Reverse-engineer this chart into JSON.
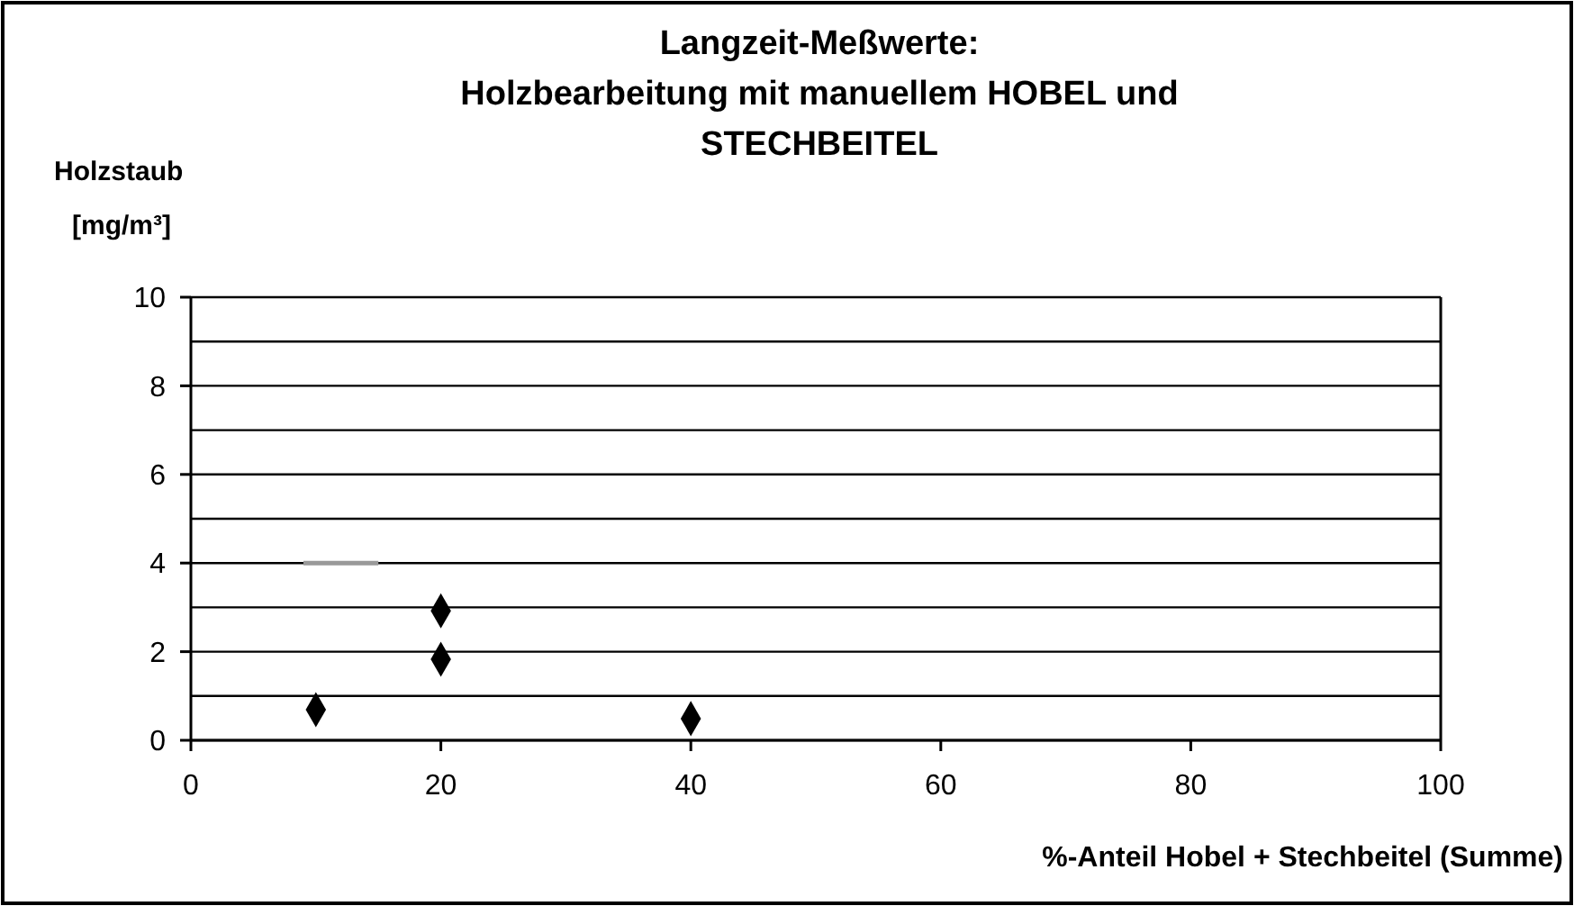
{
  "chart_data": {
    "type": "scatter",
    "title": "Langzeit-Meßwerte:\nHolzbearbeitung mit manuellem HOBEL und\nSTECHBEITEL",
    "xlabel": "%-Anteil Hobel + Stechbeitel (Summe)",
    "ylabel": "Holzstaub\n[mg/m³]",
    "marker": "diamond",
    "grid": "y",
    "xlim": [
      0,
      100
    ],
    "xticks": [
      0,
      20,
      40,
      60,
      80,
      100
    ],
    "ylim": [
      0,
      10
    ],
    "yticks": [
      0,
      {
        "value": 1,
        "label": null
      },
      2,
      {
        "value": 3,
        "label": null
      },
      4,
      {
        "value": 5,
        "label": null
      },
      6,
      {
        "value": 7,
        "label": null
      },
      8,
      {
        "value": 9,
        "label": null
      },
      10
    ],
    "series": [
      {
        "color": "#000000",
        "x": [
          10,
          20,
          20,
          40
        ],
        "values": [
          0.69,
          2.92,
          1.83,
          0.49
        ]
      },
      {
        "type": "line",
        "marker": "none",
        "color": "#999999",
        "x": [
          9,
          15
        ],
        "values": [
          4,
          4
        ]
      }
    ]
  }
}
